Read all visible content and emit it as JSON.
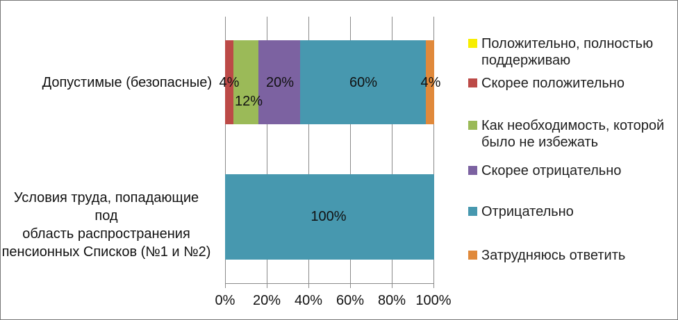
{
  "chart_data": {
    "type": "bar",
    "orientation": "horizontal-stacked",
    "title": "",
    "xlabel": "",
    "ylabel": "",
    "xlim": [
      0,
      100
    ],
    "x_tick_labels": [
      "0%",
      "20%",
      "40%",
      "60%",
      "80%",
      "100%"
    ],
    "grid": true,
    "legend_position": "right",
    "categories": [
      "Допустимые (безопасные)",
      "Условия труда, попадающие под область распространения пенсионных Списков (№1 и №2)"
    ],
    "series": [
      {
        "name": "Положительно, полностью поддерживаю",
        "color": "#F7EE00",
        "values": [
          0,
          0
        ]
      },
      {
        "name": "Скорее положительно",
        "color": "#BC4A47",
        "values": [
          4,
          0
        ]
      },
      {
        "name": "Как необходимость, которой было не избежать",
        "color": "#9BBA58",
        "values": [
          12,
          0
        ]
      },
      {
        "name": "Скорее отрицательно",
        "color": "#7C62A1",
        "values": [
          20,
          0
        ]
      },
      {
        "name": "Отрицательно",
        "color": "#4798AF",
        "values": [
          60,
          100
        ]
      },
      {
        "name": "Затрудняюсь ответить",
        "color": "#E0893B",
        "values": [
          4,
          0
        ]
      }
    ],
    "data_labels_shown": [
      "4%",
      "12%",
      "20%",
      "60%",
      "4%",
      "100%"
    ]
  },
  "categories": {
    "top": "Допустимые (безопасные)",
    "bottom": "Условия труда, попадающие под\nобласть распространения\nпенсионных Списков (№1 и №2)"
  },
  "labels": {
    "bar1_red": "4%",
    "bar1_green": "12%",
    "bar1_purple": "20%",
    "bar1_teal": "60%",
    "bar1_orange": "4%",
    "bar2_teal": "100%"
  },
  "xaxis": {
    "ticks": [
      "0%",
      "20%",
      "40%",
      "60%",
      "80%",
      "100%"
    ]
  },
  "legend": {
    "items": [
      {
        "label": "Положительно, полностью\nподдерживаю",
        "color": "#F7EE00"
      },
      {
        "label": "Скорее положительно",
        "color": "#BC4A47"
      },
      {
        "label": "Как необходимость, которой\nбыло не избежать",
        "color": "#9BBA58"
      },
      {
        "label": "Скорее отрицательно",
        "color": "#7C62A1"
      },
      {
        "label": "Отрицательно",
        "color": "#4798AF"
      },
      {
        "label": "Затрудняюсь ответить",
        "color": "#E0893B"
      }
    ]
  },
  "colors": {
    "gridline": "#8a8a8a",
    "text": "#1f1f1f",
    "background": "#ffffff",
    "border": "#767676"
  }
}
